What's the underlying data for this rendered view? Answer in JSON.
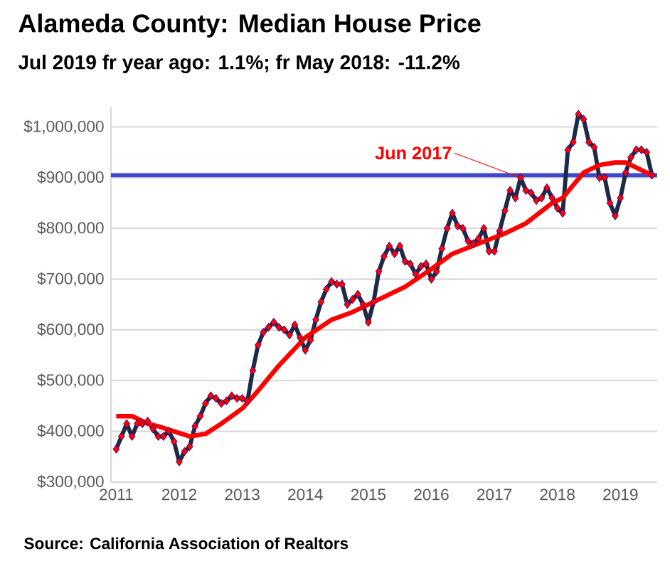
{
  "chart_data": {
    "type": "line",
    "title": "Alameda County: Median House Price",
    "subtitle": "Jul 2019 fr year ago: 1.1%; fr May 2018: -11.2%",
    "series": [
      {
        "color": "#1c2b48",
        "marker": "diamond",
        "x": [
          "2011-01",
          "2011-02",
          "2011-03",
          "2011-04",
          "2011-05",
          "2011-06",
          "2011-07",
          "2011-08",
          "2011-09",
          "2011-10",
          "2011-11",
          "2011-12",
          "2012-01",
          "2012-02",
          "2012-03",
          "2012-04",
          "2012-05",
          "2012-06",
          "2012-07",
          "2012-08",
          "2012-09",
          "2012-10",
          "2012-11",
          "2012-12",
          "2013-01",
          "2013-02",
          "2013-03",
          "2013-04",
          "2013-05",
          "2013-06",
          "2013-07",
          "2013-08",
          "2013-09",
          "2013-10",
          "2013-11",
          "2013-12",
          "2014-01",
          "2014-02",
          "2014-03",
          "2014-04",
          "2014-05",
          "2014-06",
          "2014-07",
          "2014-08",
          "2014-09",
          "2014-10",
          "2014-11",
          "2014-12",
          "2015-01",
          "2015-02",
          "2015-03",
          "2015-04",
          "2015-05",
          "2015-06",
          "2015-07",
          "2015-08",
          "2015-09",
          "2015-10",
          "2015-11",
          "2015-12",
          "2016-01",
          "2016-02",
          "2016-03",
          "2016-04",
          "2016-05",
          "2016-06",
          "2016-07",
          "2016-08",
          "2016-09",
          "2016-10",
          "2016-11",
          "2016-12",
          "2017-01",
          "2017-02",
          "2017-03",
          "2017-04",
          "2017-05",
          "2017-06",
          "2017-07",
          "2017-08",
          "2017-09",
          "2017-10",
          "2017-11",
          "2017-12",
          "2018-01",
          "2018-02",
          "2018-03",
          "2018-04",
          "2018-05",
          "2018-06",
          "2018-07",
          "2018-08",
          "2018-09",
          "2018-10",
          "2018-11",
          "2018-12",
          "2019-01",
          "2019-02",
          "2019-03",
          "2019-04",
          "2019-05",
          "2019-06",
          "2019-07"
        ],
        "values": [
          365000,
          390000,
          415000,
          390000,
          415000,
          415000,
          420000,
          405000,
          390000,
          390000,
          400000,
          380000,
          340000,
          360000,
          370000,
          410000,
          430000,
          455000,
          470000,
          465000,
          455000,
          460000,
          470000,
          465000,
          465000,
          460000,
          520000,
          570000,
          595000,
          605000,
          615000,
          605000,
          600000,
          590000,
          610000,
          585000,
          560000,
          580000,
          620000,
          655000,
          680000,
          695000,
          690000,
          690000,
          650000,
          660000,
          670000,
          650000,
          615000,
          655000,
          715000,
          745000,
          765000,
          750000,
          765000,
          735000,
          730000,
          710000,
          725000,
          730000,
          700000,
          715000,
          760000,
          800000,
          830000,
          805000,
          800000,
          775000,
          770000,
          780000,
          800000,
          755000,
          755000,
          795000,
          835000,
          875000,
          860000,
          900000,
          875000,
          870000,
          855000,
          860000,
          880000,
          860000,
          840000,
          830000,
          955000,
          970000,
          1025000,
          1015000,
          970000,
          960000,
          900000,
          900000,
          850000,
          825000,
          860000,
          910000,
          940000,
          955000,
          955000,
          950000,
          905000
        ]
      },
      {
        "color": "#ff0000",
        "marker": "none",
        "x": [
          "2011-01",
          "2011-04",
          "2011-07",
          "2011-09",
          "2011-12",
          "2012-03",
          "2012-06",
          "2012-09",
          "2013-01",
          "2013-04",
          "2013-08",
          "2014-01",
          "2014-06",
          "2014-10",
          "2015-03",
          "2015-08",
          "2016-01",
          "2016-05",
          "2016-10",
          "2017-03",
          "2017-07",
          "2017-12",
          "2018-02",
          "2018-04",
          "2018-06",
          "2018-09",
          "2018-12",
          "2019-02",
          "2019-04",
          "2019-07"
        ],
        "values": [
          430000,
          430000,
          415000,
          410000,
          400000,
          390000,
          395000,
          415000,
          445000,
          480000,
          530000,
          585000,
          620000,
          635000,
          660000,
          685000,
          720000,
          750000,
          770000,
          790000,
          810000,
          850000,
          860000,
          885000,
          910000,
          925000,
          930000,
          930000,
          920000,
          905000
        ]
      }
    ],
    "xlim": [
      "2010-12",
      "2019-08"
    ],
    "xticks": [
      "2011",
      "2012",
      "2013",
      "2014",
      "2015",
      "2016",
      "2017",
      "2018",
      "2019"
    ],
    "ylim": [
      300000,
      1040000
    ],
    "yticks": [
      {
        "value": 300000,
        "label": "$300,000"
      },
      {
        "value": 400000,
        "label": "$400,000"
      },
      {
        "value": 500000,
        "label": "$500,000"
      },
      {
        "value": 600000,
        "label": "$600,000"
      },
      {
        "value": 700000,
        "label": "$700,000"
      },
      {
        "value": 800000,
        "label": "$800,000"
      },
      {
        "value": 900000,
        "label": "$900,000"
      },
      {
        "value": 1000000,
        "label": "$1,000,000"
      }
    ],
    "grid": "y",
    "ref_lines": [
      {
        "axis": "y",
        "value": 905000,
        "color": "#3f48cc"
      }
    ],
    "annotations": [
      {
        "text": "Jun 2017",
        "x": "2017-06",
        "y": 900000
      },
      "Source: California Association of Realtors"
    ]
  }
}
